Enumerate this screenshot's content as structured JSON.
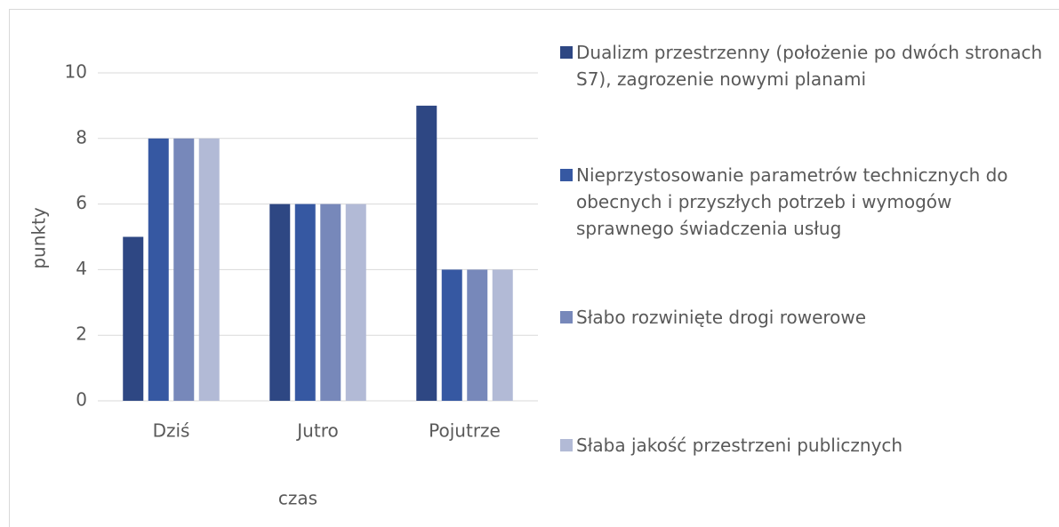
{
  "chart_data": {
    "type": "bar",
    "categories": [
      "Dziś",
      "Jutro",
      "Pojutrze"
    ],
    "series": [
      {
        "name": "Dualizm przestrzenny (położenie po dwóch stronach S7), zagrozenie nowymi planami",
        "color": "#2e4783",
        "values": [
          5,
          6,
          9
        ]
      },
      {
        "name": "Nieprzystosowanie parametrów technicznych do obecnych i przyszłych potrzeb i wymogów sprawnego świadczenia usług",
        "color": "#3658a2",
        "values": [
          8,
          6,
          4
        ]
      },
      {
        "name": "Słabo rozwinięte drogi rowerowe",
        "color": "#7788ba",
        "values": [
          8,
          6,
          4
        ]
      },
      {
        "name": "Słaba jakość przestrzeni publicznych",
        "color": "#b2bad6",
        "values": [
          8,
          6,
          4
        ]
      }
    ],
    "ylabel": "punkty",
    "xlabel": "czas",
    "ylim": [
      0,
      10
    ],
    "yticks": [
      0,
      2,
      4,
      6,
      8,
      10
    ],
    "grid": true,
    "legend": "right"
  }
}
